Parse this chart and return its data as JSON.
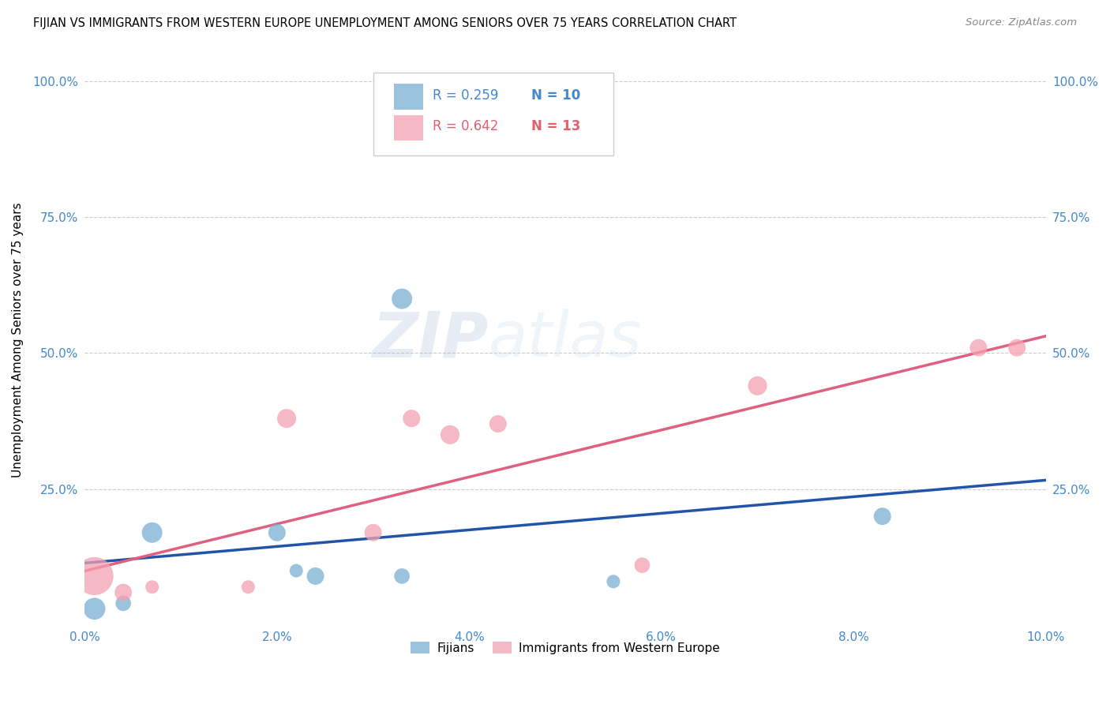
{
  "title": "FIJIAN VS IMMIGRANTS FROM WESTERN EUROPE UNEMPLOYMENT AMONG SENIORS OVER 75 YEARS CORRELATION CHART",
  "source": "Source: ZipAtlas.com",
  "ylabel": "Unemployment Among Seniors over 75 years",
  "watermark_zip": "ZIP",
  "watermark_atlas": "atlas",
  "xlim": [
    0.0,
    0.1
  ],
  "ylim": [
    0.0,
    1.05
  ],
  "xticks": [
    0.0,
    0.02,
    0.04,
    0.06,
    0.08,
    0.1
  ],
  "yticks": [
    0.25,
    0.5,
    0.75,
    1.0
  ],
  "ytick_labels": [
    "25.0%",
    "50.0%",
    "75.0%",
    "100.0%"
  ],
  "xtick_labels": [
    "0.0%",
    "2.0%",
    "4.0%",
    "6.0%",
    "8.0%",
    "10.0%"
  ],
  "fijian_color": "#7BAFD4",
  "immigrant_color": "#F4A0B0",
  "fijian_line_color": "#2255AA",
  "immigrant_line_color": "#E06080",
  "legend_color_fijian": "#4488CC",
  "legend_color_immigrant": "#E06070",
  "fijian_x": [
    0.001,
    0.004,
    0.007,
    0.02,
    0.022,
    0.024,
    0.033,
    0.033,
    0.055,
    0.083
  ],
  "fijian_y": [
    0.03,
    0.04,
    0.17,
    0.17,
    0.1,
    0.09,
    0.09,
    0.6,
    0.08,
    0.2
  ],
  "fijian_size": [
    400,
    200,
    350,
    250,
    150,
    250,
    200,
    350,
    150,
    250
  ],
  "immigrant_x": [
    0.001,
    0.004,
    0.007,
    0.017,
    0.021,
    0.03,
    0.034,
    0.038,
    0.043,
    0.058,
    0.07,
    0.093,
    0.097
  ],
  "immigrant_y": [
    0.09,
    0.06,
    0.07,
    0.07,
    0.38,
    0.17,
    0.38,
    0.35,
    0.37,
    0.11,
    0.44,
    0.51,
    0.51
  ],
  "immigrant_size": [
    1200,
    250,
    150,
    150,
    300,
    250,
    250,
    300,
    250,
    200,
    300,
    250,
    250
  ],
  "fijian_R": "R = 0.259",
  "fijian_N": "N = 10",
  "immigrant_R": "R = 0.642",
  "immigrant_N": "N = 13",
  "background_color": "#FFFFFF",
  "grid_color": "#CCCCCC"
}
